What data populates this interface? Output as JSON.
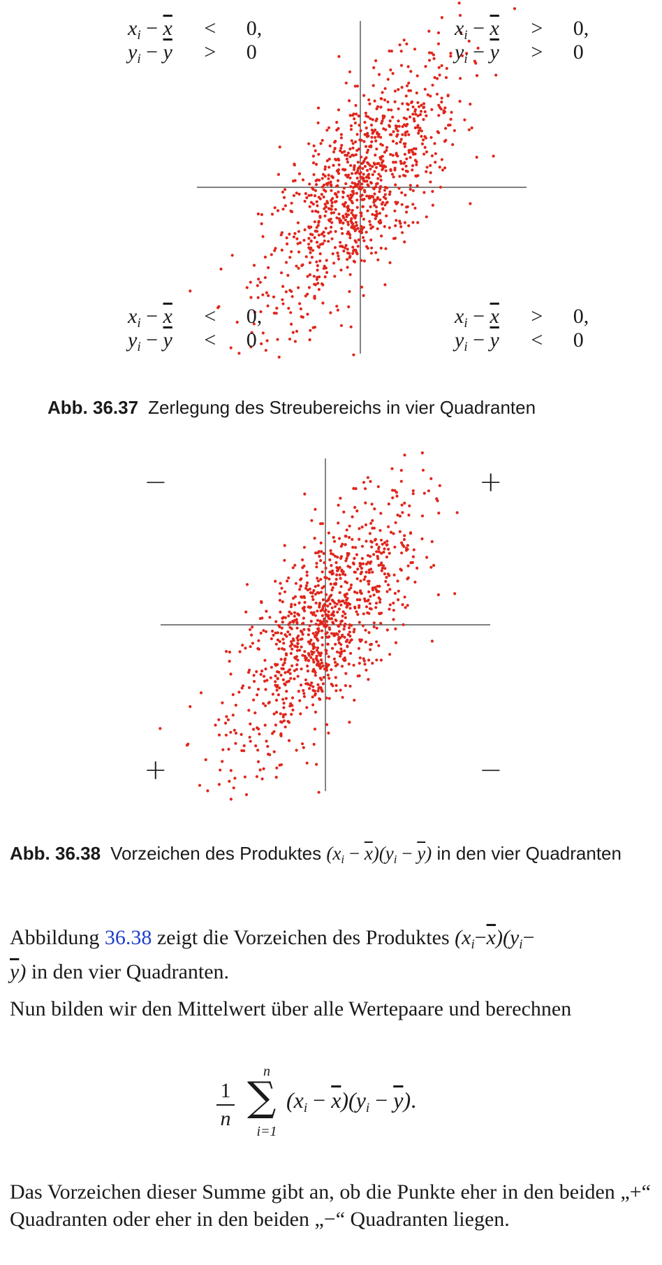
{
  "figure1": {
    "quadrants": {
      "top_left": {
        "line1": {
          "lhs": "x",
          "op": "<",
          "rhs": "0,"
        },
        "line2": {
          "lhs": "y",
          "op": ">",
          "rhs": "0"
        }
      },
      "top_right": {
        "line1": {
          "lhs": "x",
          "op": ">",
          "rhs": "0,"
        },
        "line2": {
          "lhs": "y",
          "op": ">",
          "rhs": "0"
        }
      },
      "bottom_left": {
        "line1": {
          "lhs": "x",
          "op": "<",
          "rhs": "0,"
        },
        "line2": {
          "lhs": "y",
          "op": "<",
          "rhs": "0"
        }
      },
      "bottom_right": {
        "line1": {
          "lhs": "x",
          "op": ">",
          "rhs": "0,"
        },
        "line2": {
          "lhs": "y",
          "op": "<",
          "rhs": "0"
        }
      }
    },
    "caption": {
      "label": "Abb. 36.37",
      "text": "Zerlegung des Streubereichs in vier Quadranten"
    }
  },
  "figure2": {
    "signs": {
      "top_left": "−",
      "top_right": "+",
      "bottom_left": "+",
      "bottom_right": "−"
    },
    "caption": {
      "label": "Abb. 36.38",
      "text_before": "Vorzeichen des Produktes",
      "text_after": "in den vier Quadranten"
    }
  },
  "chart_data": {
    "type": "scatter",
    "description_of_data": "bivariate sample with positive correlation, centered at the mean lines",
    "point_color": "#e0261c",
    "point_count": 1000,
    "correlation": 0.7,
    "axes": "crossing lines at the sample means",
    "grid": false
  },
  "paragraphs": {
    "p1": {
      "before": "Abbildung",
      "ref": "36.38",
      "after_1": "zeigt die Vorzeichen des Produktes",
      "after_2": "in den vier Quadranten."
    },
    "p2": {
      "text": "Nun bilden wir den Mittelwert über alle Wertepaare und berechnen"
    },
    "p3": {
      "text": "Das Vorzeichen dieser Summe gibt an, ob die Punkte eher in den beiden „+“ Quadranten oder eher in den beiden „−“ Quadranten liegen."
    }
  },
  "formula": {
    "num": "1",
    "den": "n",
    "sup": "n",
    "sub": "i=1"
  },
  "colors": {
    "points": "#e0261c",
    "link": "#1f3fcc",
    "text": "#1a1a1a"
  }
}
